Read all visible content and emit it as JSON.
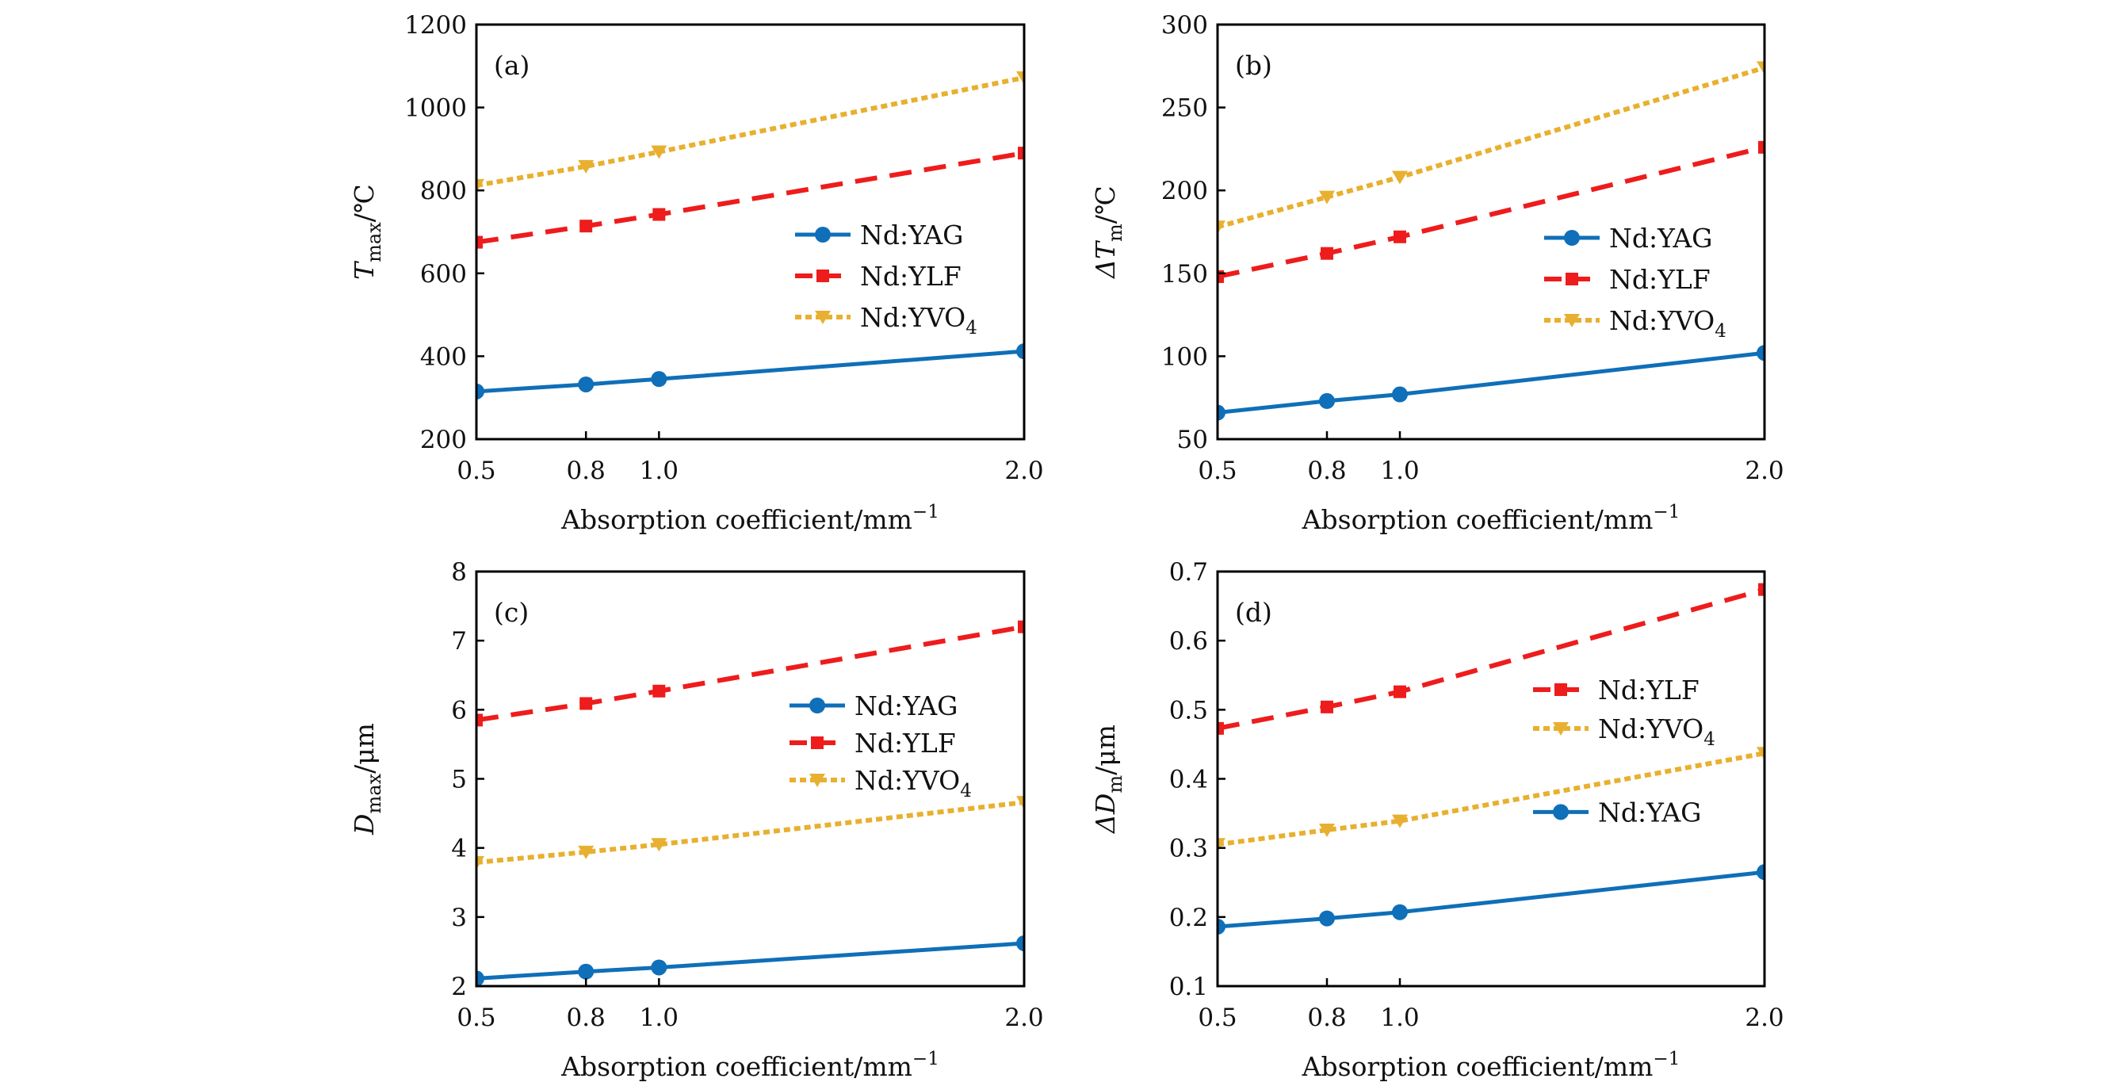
{
  "chart_data": [
    {
      "type": "line",
      "panel": "(a)",
      "xlabel": "Absorption coefficient/mm⁻¹",
      "ylabel_main": "T",
      "ylabel_sub": "max",
      "ylabel_unit": "/℃",
      "x": [
        0.5,
        0.8,
        1.0,
        2.0
      ],
      "xticks": [
        "0.5",
        "0.8",
        "1.0",
        "2.0"
      ],
      "xlim": [
        0.5,
        2.0
      ],
      "ylim": [
        200,
        1200
      ],
      "yticks": [
        200,
        400,
        600,
        800,
        1000,
        1200
      ],
      "legend_placement": "center-right",
      "legend_order": [
        "Nd:YAG",
        "Nd:YLF",
        "Nd:YVO4"
      ],
      "series": [
        {
          "name": "Nd:YAG",
          "label_main": "Nd:YAG",
          "label_sub": "",
          "color": "#0f6fb8",
          "style": "solid",
          "marker": "circle",
          "values": [
            315,
            332,
            345,
            412
          ]
        },
        {
          "name": "Nd:YLF",
          "label_main": "Nd:YLF",
          "label_sub": "",
          "color": "#ee1c1c",
          "style": "dashed",
          "marker": "square",
          "values": [
            675,
            714,
            742,
            890
          ]
        },
        {
          "name": "Nd:YVO4",
          "label_main": "Nd:YVO",
          "label_sub": "4",
          "color": "#e8b030",
          "style": "dotted",
          "marker": "triangle-down",
          "values": [
            812,
            858,
            893,
            1072
          ]
        }
      ]
    },
    {
      "type": "line",
      "panel": "(b)",
      "xlabel": "Absorption coefficient/mm⁻¹",
      "ylabel_main": "ΔT",
      "ylabel_sub": "m",
      "ylabel_unit": "/℃",
      "x": [
        0.5,
        0.8,
        1.0,
        2.0
      ],
      "xticks": [
        "0.5",
        "0.8",
        "1.0",
        "2.0"
      ],
      "xlim": [
        0.5,
        2.0
      ],
      "ylim": [
        50,
        300
      ],
      "yticks": [
        50,
        100,
        150,
        200,
        250,
        300
      ],
      "legend_placement": "center-right",
      "legend_order": [
        "Nd:YAG",
        "Nd:YLF",
        "Nd:YVO4"
      ],
      "series": [
        {
          "name": "Nd:YAG",
          "label_main": "Nd:YAG",
          "label_sub": "",
          "color": "#0f6fb8",
          "style": "solid",
          "marker": "circle",
          "values": [
            66,
            73,
            77,
            102
          ]
        },
        {
          "name": "Nd:YLF",
          "label_main": "Nd:YLF",
          "label_sub": "",
          "color": "#ee1c1c",
          "style": "dashed",
          "marker": "square",
          "values": [
            148,
            162,
            172,
            226
          ]
        },
        {
          "name": "Nd:YVO4",
          "label_main": "Nd:YVO",
          "label_sub": "4",
          "color": "#e8b030",
          "style": "dotted",
          "marker": "triangle-down",
          "values": [
            178,
            196,
            208,
            274
          ]
        }
      ]
    },
    {
      "type": "line",
      "panel": "(c)",
      "xlabel": "Absorption coefficient/mm⁻¹",
      "ylabel_main": "D",
      "ylabel_sub": "max",
      "ylabel_unit": "/μm",
      "x": [
        0.5,
        0.8,
        1.0,
        2.0
      ],
      "xticks": [
        "0.5",
        "0.8",
        "1.0",
        "2.0"
      ],
      "xlim": [
        0.5,
        2.0
      ],
      "ylim": [
        2,
        8
      ],
      "yticks": [
        2,
        3,
        4,
        5,
        6,
        7,
        8
      ],
      "legend_placement": "center-right",
      "legend_order": [
        "Nd:YAG",
        "Nd:YLF",
        "Nd:YVO4"
      ],
      "series": [
        {
          "name": "Nd:YAG",
          "label_main": "Nd:YAG",
          "label_sub": "",
          "color": "#0f6fb8",
          "style": "solid",
          "marker": "circle",
          "values": [
            2.11,
            2.21,
            2.27,
            2.62
          ]
        },
        {
          "name": "Nd:YLF",
          "label_main": "Nd:YLF",
          "label_sub": "",
          "color": "#ee1c1c",
          "style": "dashed",
          "marker": "square",
          "values": [
            5.85,
            6.09,
            6.27,
            7.2
          ]
        },
        {
          "name": "Nd:YVO4",
          "label_main": "Nd:YVO",
          "label_sub": "4",
          "color": "#e8b030",
          "style": "dotted",
          "marker": "triangle-down",
          "values": [
            3.79,
            3.94,
            4.05,
            4.66
          ]
        }
      ]
    },
    {
      "type": "line",
      "panel": "(d)",
      "xlabel": "Absorption coefficient/mm⁻¹",
      "ylabel_main": "ΔD",
      "ylabel_sub": "m",
      "ylabel_unit": "/μm",
      "x": [
        0.5,
        0.8,
        1.0,
        2.0
      ],
      "xticks": [
        "0.5",
        "0.8",
        "1.0",
        "2.0"
      ],
      "xlim": [
        0.5,
        2.0
      ],
      "ylim": [
        0.1,
        0.7
      ],
      "yticks": [
        0.1,
        0.2,
        0.3,
        0.4,
        0.5,
        0.6,
        0.7
      ],
      "legend_placement": "center-right",
      "legend_order": [
        "Nd:YLF",
        "Nd:YVO4",
        "gap",
        "Nd:YAG"
      ],
      "series": [
        {
          "name": "Nd:YAG",
          "label_main": "Nd:YAG",
          "label_sub": "",
          "color": "#0f6fb8",
          "style": "solid",
          "marker": "circle",
          "values": [
            0.186,
            0.198,
            0.207,
            0.265
          ]
        },
        {
          "name": "Nd:YLF",
          "label_main": "Nd:YLF",
          "label_sub": "",
          "color": "#ee1c1c",
          "style": "dashed",
          "marker": "square",
          "values": [
            0.473,
            0.504,
            0.526,
            0.674
          ]
        },
        {
          "name": "Nd:YVO4",
          "label_main": "Nd:YVO",
          "label_sub": "4",
          "color": "#e8b030",
          "style": "dotted",
          "marker": "triangle-down",
          "values": [
            0.305,
            0.326,
            0.339,
            0.437
          ]
        }
      ]
    }
  ]
}
